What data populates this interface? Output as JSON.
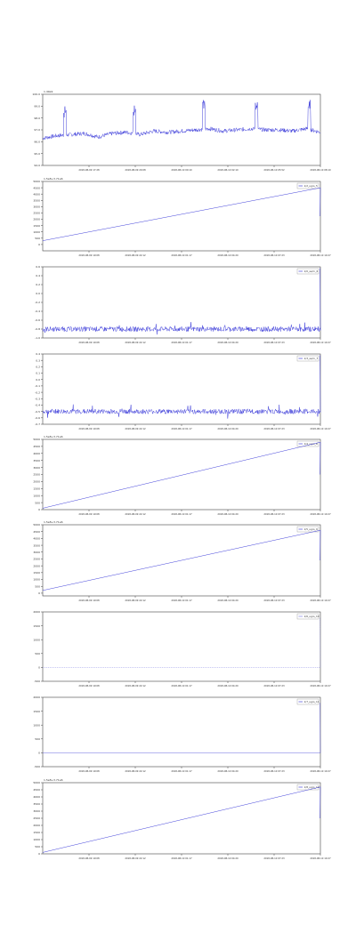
{
  "chart_data": [
    {
      "type": "line",
      "offset_label": "1.49e9",
      "legend": "",
      "ylim": [
        94.0,
        100.0
      ],
      "y_ticks": [
        "94.0",
        "95.0",
        "96.0",
        "97.0",
        "98.0",
        "99.0",
        "100.0"
      ],
      "x_ticks": [
        "2018-08-09 17:28",
        "2018-08-09 20:08",
        "2018-08-10 00:10",
        "2018-08-10 02:10",
        "2018-08-10 05:52",
        "2018-08-10 08:10"
      ],
      "series": [
        {
          "color": "#2b2bd6",
          "kind": "noisy",
          "x": [
            0,
            5,
            10,
            15,
            20,
            25,
            30,
            35,
            40,
            45,
            50,
            55,
            60,
            65,
            70,
            75,
            80,
            85,
            90,
            95,
            100
          ],
          "y": [
            96.3,
            96.5,
            96.6,
            96.7,
            96.4,
            96.7,
            96.8,
            96.6,
            96.9,
            96.8,
            96.9,
            97.0,
            97.1,
            96.9,
            97.0,
            97.1,
            97.0,
            97.0,
            96.9,
            97.1,
            96.8
          ]
        }
      ]
    },
    {
      "type": "line",
      "offset_label": "1.5e8+3.71e6",
      "legend": "1/2_ugrs_5",
      "ylim": [
        -500,
        5000
      ],
      "y_ticks": [
        "0",
        "500",
        "1000",
        "1500",
        "2000",
        "2500",
        "3000",
        "3500",
        "4000",
        "4500",
        "5000"
      ],
      "x_ticks": [
        "2018-08-09 19:08",
        "2018-08-09 22:12",
        "2018-08-10 01:17",
        "2018-08-10 04:20",
        "2018-08-10 07:23",
        "2018-08-10 10:27"
      ],
      "series": [
        {
          "color": "#2b2bd6",
          "kind": "linear",
          "x": [
            0,
            100
          ],
          "y": [
            300,
            4500
          ]
        }
      ]
    },
    {
      "type": "line",
      "offset_label": "",
      "legend": "1/0_ss/rn_6",
      "ylim": [
        -1.0,
        0.6
      ],
      "y_ticks": [
        "-1.0",
        "-0.8",
        "-0.6",
        "-0.4",
        "-0.2",
        "0.0",
        "0.2",
        "0.4",
        "0.6"
      ],
      "x_ticks": [
        "2018-08-09 19:08",
        "2018-08-09 22:12",
        "2018-08-10 01:17",
        "2018-08-10 04:20",
        "2018-08-10 07:23",
        "2018-08-10 10:27"
      ],
      "series": [
        {
          "color": "#2b2bd6",
          "kind": "noise",
          "x": [
            0,
            100
          ],
          "y": [
            -0.8,
            -0.8
          ]
        }
      ]
    },
    {
      "type": "line",
      "offset_label": "",
      "legend": "1/3_ss/rn_7",
      "ylim": [
        -0.7,
        0.4
      ],
      "y_ticks": [
        "-0.7",
        "-0.6",
        "-0.5",
        "-0.4",
        "-0.3",
        "-0.2",
        "-0.1",
        "0.0",
        "0.1",
        "0.2",
        "0.3",
        "0.4"
      ],
      "x_ticks": [
        "2018-08-09 19:08",
        "2018-08-09 22:12",
        "2018-08-10 01:17",
        "2018-08-10 04:20",
        "2018-08-10 07:23",
        "2018-08-10 10:27"
      ],
      "series": [
        {
          "color": "#2b2bd6",
          "kind": "noise",
          "x": [
            0,
            100
          ],
          "y": [
            -0.5,
            -0.5
          ]
        }
      ]
    },
    {
      "type": "line",
      "offset_label": "1.5e8+3.71e6",
      "legend": "1/4_ugrs_8",
      "ylim": [
        0,
        5000
      ],
      "y_ticks": [
        "0",
        "500",
        "1000",
        "1500",
        "2000",
        "2500",
        "3000",
        "3500",
        "4000",
        "4500",
        "5000"
      ],
      "x_ticks": [
        "2018-08-09 19:08",
        "2018-08-09 22:12",
        "2018-08-10 01:17",
        "2018-08-10 04:20",
        "2018-08-10 07:23",
        "2018-08-10 10:27"
      ],
      "series": [
        {
          "color": "#2b2bd6",
          "kind": "linear",
          "x": [
            0,
            100
          ],
          "y": [
            100,
            4800
          ]
        }
      ]
    },
    {
      "type": "line",
      "offset_label": "1.5e8+3.71e6",
      "legend": "1/5_ugrs_9",
      "ylim": [
        -200,
        5000
      ],
      "y_ticks": [
        "0",
        "500",
        "1000",
        "1500",
        "2000",
        "2500",
        "3000",
        "3500",
        "4000",
        "4500",
        "5000"
      ],
      "x_ticks": [
        "2018-08-09 19:08",
        "2018-08-09 22:12",
        "2018-08-10 01:17",
        "2018-08-10 04:20",
        "2018-08-10 07:23",
        "2018-08-10 10:27"
      ],
      "series": [
        {
          "color": "#2b2bd6",
          "kind": "linear",
          "x": [
            0,
            100
          ],
          "y": [
            200,
            4600
          ]
        }
      ]
    },
    {
      "type": "line",
      "offset_label": "",
      "legend": "1/6_ugrs_10",
      "ylim": [
        -500,
        2000
      ],
      "y_ticks": [
        "-500",
        "0",
        "500",
        "1000",
        "1500",
        "2000"
      ],
      "x_ticks": [
        "2018-08-09 19:08",
        "2018-08-09 22:12",
        "2018-08-10 01:17",
        "2018-08-10 04:20",
        "2018-08-10 07:23",
        "2018-08-10 10:27"
      ],
      "series": [
        {
          "color": "#6e6ee0",
          "kind": "flat",
          "x": [
            0,
            100
          ],
          "y": [
            0,
            0
          ]
        }
      ]
    },
    {
      "type": "line",
      "offset_label": "",
      "legend": "1/7_ugrs_11",
      "ylim": [
        -500,
        2000
      ],
      "y_ticks": [
        "-500",
        "0",
        "500",
        "1000",
        "1500",
        "2000"
      ],
      "x_ticks": [
        "2018-08-09 19:08",
        "2018-08-09 22:12",
        "2018-08-10 01:17",
        "2018-08-10 04:20",
        "2018-08-10 07:23",
        "2018-08-10 10:27"
      ],
      "series": [
        {
          "color": "#2b2bd6",
          "kind": "flat",
          "x": [
            0,
            100
          ],
          "y": [
            0,
            0
          ]
        }
      ]
    },
    {
      "type": "line",
      "offset_label": "1.5e8+3.71e6",
      "legend": "1/8_ugrs_12",
      "ylim": [
        0,
        5000
      ],
      "y_ticks": [
        "0",
        "500",
        "1000",
        "1500",
        "2000",
        "2500",
        "3000",
        "3500",
        "4000",
        "4500",
        "5000"
      ],
      "x_ticks": [
        "2018-08-09 19:08",
        "2018-08-09 22:12",
        "2018-08-10 01:17",
        "2018-08-10 04:20",
        "2018-08-10 07:23",
        "2018-08-10 10:27"
      ],
      "series": [
        {
          "color": "#2b2bd6",
          "kind": "linear",
          "x": [
            0,
            100
          ],
          "y": [
            100,
            4700
          ]
        }
      ]
    }
  ]
}
